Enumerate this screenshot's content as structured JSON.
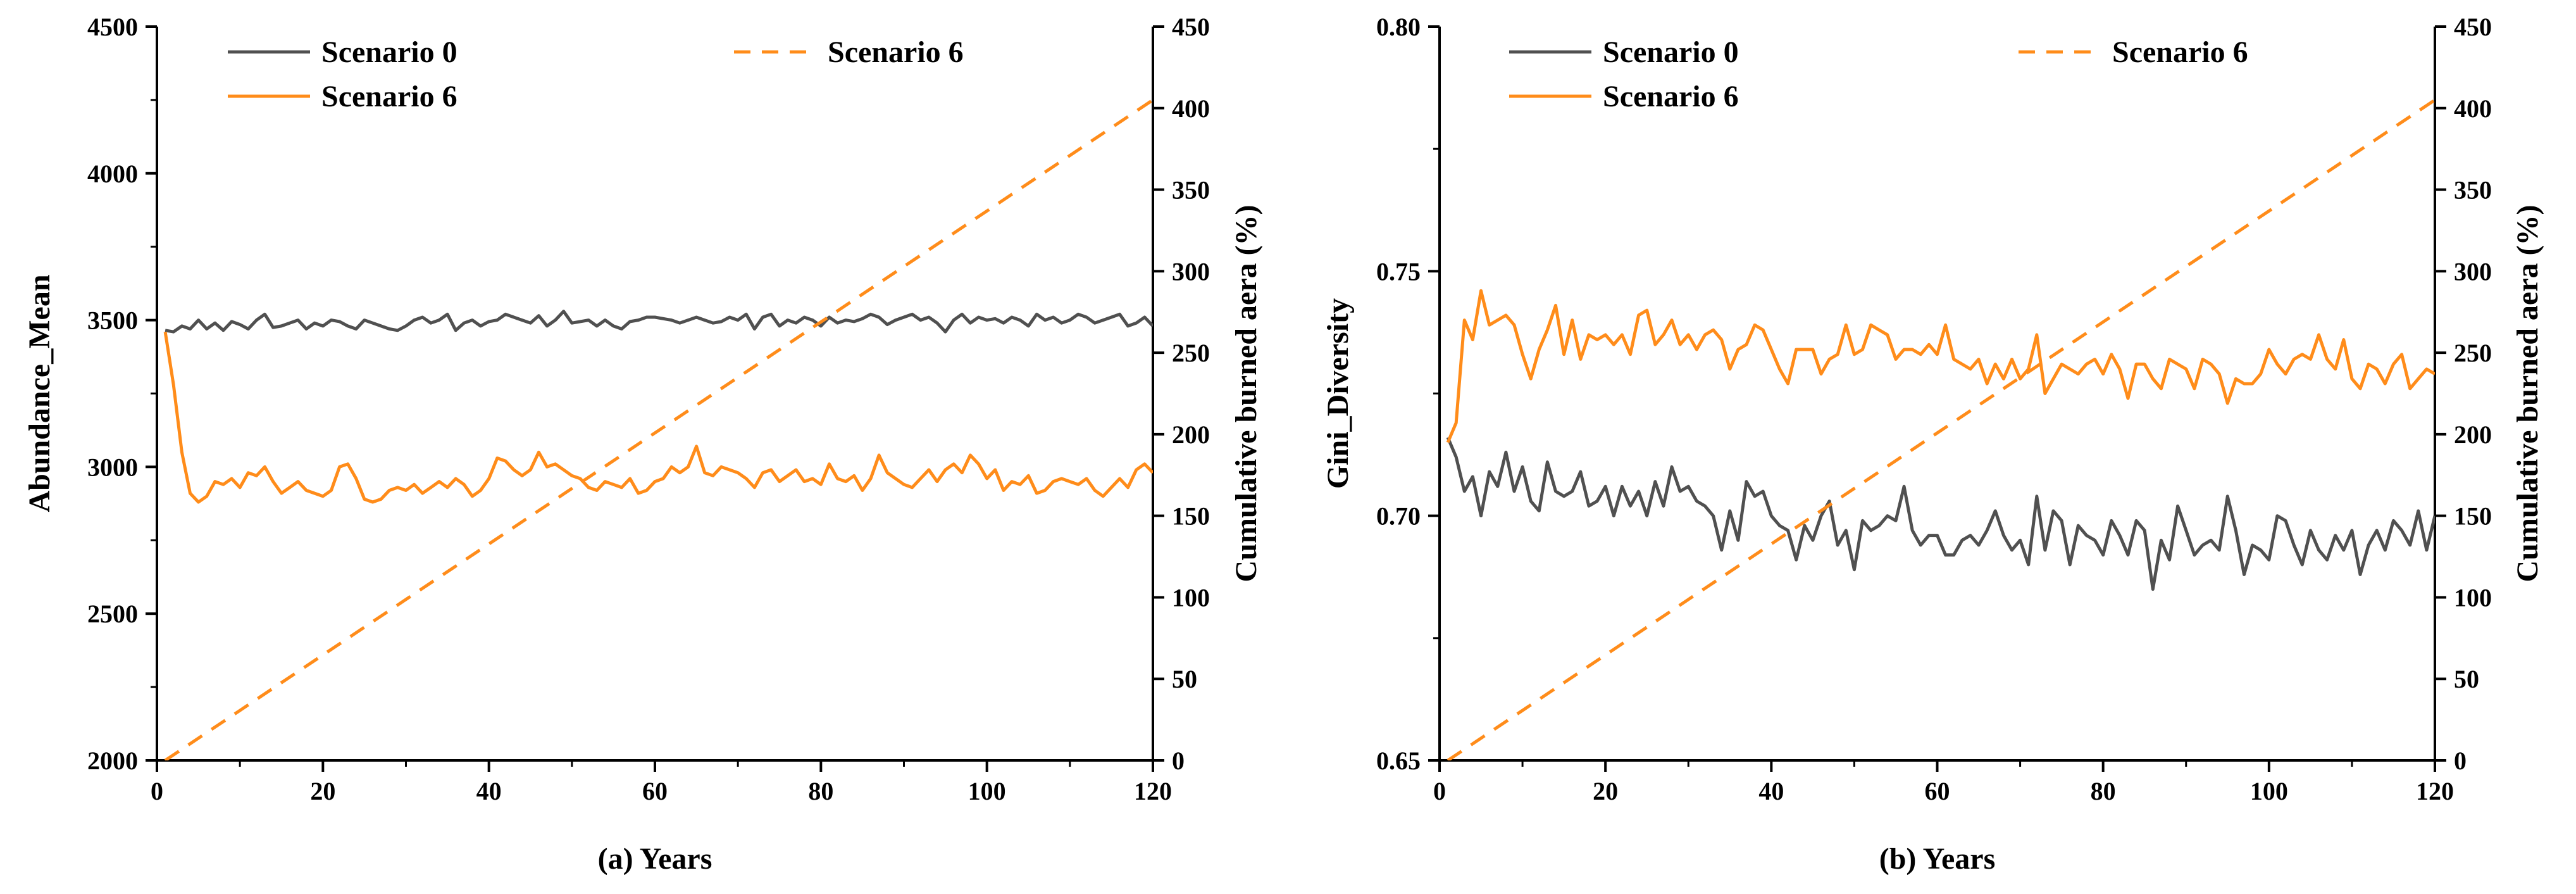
{
  "colors": {
    "scenario0": "#505050",
    "scenario6": "#ff8c1a",
    "axis": "#000000"
  },
  "chart_data": [
    {
      "type": "line",
      "panel_title": "(a) Years",
      "xlabel": "(a) Years",
      "ylabel": "Abundance_Mean",
      "y2label": "Cumulative burned aera (%)",
      "xlim": [
        0,
        120
      ],
      "ylim": [
        2000,
        4500
      ],
      "y2lim": [
        0,
        450
      ],
      "xticks": [
        "0",
        "20",
        "40",
        "60",
        "80",
        "100",
        "120"
      ],
      "yticks": [
        "2000",
        "2500",
        "3000",
        "3500",
        "4000",
        "4500"
      ],
      "y2ticks": [
        "0",
        "50",
        "100",
        "150",
        "200",
        "250",
        "300",
        "350",
        "400",
        "450"
      ],
      "legend": [
        "Scenario 0",
        "Scenario 6",
        "Scenario 6"
      ],
      "series": [
        {
          "name": "Scenario 0",
          "axis": "left",
          "style": "solid",
          "x_start": 1,
          "x_step": 1,
          "values": [
            3465,
            3460,
            3480,
            3470,
            3500,
            3470,
            3490,
            3465,
            3495,
            3485,
            3470,
            3500,
            3520,
            3475,
            3480,
            3490,
            3500,
            3470,
            3490,
            3480,
            3500,
            3495,
            3480,
            3470,
            3500,
            3490,
            3480,
            3470,
            3465,
            3480,
            3500,
            3510,
            3490,
            3500,
            3520,
            3465,
            3490,
            3500,
            3480,
            3495,
            3500,
            3520,
            3510,
            3500,
            3490,
            3515,
            3480,
            3500,
            3530,
            3490,
            3495,
            3500,
            3480,
            3500,
            3480,
            3470,
            3495,
            3500,
            3510,
            3510,
            3505,
            3500,
            3490,
            3500,
            3510,
            3500,
            3490,
            3495,
            3510,
            3500,
            3520,
            3470,
            3510,
            3520,
            3480,
            3500,
            3490,
            3510,
            3500,
            3480,
            3510,
            3490,
            3500,
            3495,
            3505,
            3520,
            3510,
            3485,
            3500,
            3510,
            3520,
            3500,
            3510,
            3490,
            3460,
            3500,
            3520,
            3490,
            3510,
            3500,
            3505,
            3490,
            3510,
            3500,
            3480,
            3520,
            3500,
            3510,
            3490,
            3500,
            3520,
            3510,
            3490,
            3500,
            3510,
            3520,
            3480,
            3490,
            3510,
            3480
          ]
        },
        {
          "name": "Scenario 6",
          "axis": "left",
          "style": "solid",
          "x_start": 1,
          "x_step": 1,
          "values": [
            3460,
            3280,
            3050,
            2910,
            2880,
            2900,
            2950,
            2940,
            2960,
            2930,
            2980,
            2970,
            3000,
            2950,
            2910,
            2930,
            2950,
            2920,
            2910,
            2900,
            2920,
            3000,
            3010,
            2960,
            2890,
            2880,
            2890,
            2920,
            2930,
            2920,
            2940,
            2910,
            2930,
            2950,
            2930,
            2960,
            2940,
            2900,
            2920,
            2960,
            3030,
            3020,
            2990,
            2970,
            2990,
            3050,
            3000,
            3010,
            2990,
            2970,
            2960,
            2930,
            2920,
            2950,
            2940,
            2930,
            2960,
            2910,
            2920,
            2950,
            2960,
            3000,
            2980,
            3000,
            3070,
            2980,
            2970,
            3000,
            2990,
            2980,
            2960,
            2930,
            2980,
            2990,
            2950,
            2970,
            2990,
            2950,
            2960,
            2940,
            3010,
            2960,
            2950,
            2970,
            2920,
            2960,
            3040,
            2980,
            2960,
            2940,
            2930,
            2960,
            2990,
            2950,
            2990,
            3010,
            2980,
            3040,
            3010,
            2960,
            2990,
            2920,
            2950,
            2940,
            2970,
            2910,
            2920,
            2950,
            2960,
            2950,
            2940,
            2960,
            2920,
            2900,
            2930,
            2960,
            2930,
            2990,
            3010,
            2980
          ]
        },
        {
          "name": "Scenario 6",
          "axis": "right",
          "style": "dashed",
          "x": [
            1,
            120
          ],
          "values": [
            0,
            405
          ]
        }
      ]
    },
    {
      "type": "line",
      "panel_title": "(b) Years",
      "xlabel": "(b) Years",
      "ylabel": "Gini_Diversity",
      "y2label": "Cumulative burned aera (%)",
      "xlim": [
        0,
        120
      ],
      "ylim": [
        0.65,
        0.8
      ],
      "y2lim": [
        0,
        450
      ],
      "xticks": [
        "0",
        "20",
        "40",
        "60",
        "80",
        "100",
        "120"
      ],
      "yticks": [
        "0.65",
        "0.70",
        "0.75",
        "0.80"
      ],
      "y2ticks": [
        "0",
        "50",
        "100",
        "150",
        "200",
        "250",
        "300",
        "350",
        "400",
        "450"
      ],
      "legend": [
        "Scenario 0",
        "Scenario 6",
        "Scenario 6"
      ],
      "series": [
        {
          "name": "Scenario 0",
          "axis": "left",
          "style": "solid",
          "x_start": 1,
          "x_step": 1,
          "values": [
            0.716,
            0.712,
            0.705,
            0.708,
            0.7,
            0.709,
            0.706,
            0.713,
            0.705,
            0.71,
            0.703,
            0.701,
            0.711,
            0.705,
            0.704,
            0.705,
            0.709,
            0.702,
            0.703,
            0.706,
            0.7,
            0.706,
            0.702,
            0.705,
            0.7,
            0.707,
            0.702,
            0.71,
            0.705,
            0.706,
            0.703,
            0.702,
            0.7,
            0.693,
            0.701,
            0.695,
            0.707,
            0.704,
            0.705,
            0.7,
            0.698,
            0.697,
            0.691,
            0.698,
            0.695,
            0.7,
            0.703,
            0.694,
            0.697,
            0.689,
            0.699,
            0.697,
            0.698,
            0.7,
            0.699,
            0.706,
            0.697,
            0.694,
            0.696,
            0.696,
            0.692,
            0.692,
            0.695,
            0.696,
            0.694,
            0.697,
            0.701,
            0.696,
            0.693,
            0.695,
            0.69,
            0.704,
            0.693,
            0.701,
            0.699,
            0.69,
            0.698,
            0.696,
            0.695,
            0.692,
            0.699,
            0.696,
            0.692,
            0.699,
            0.697,
            0.685,
            0.695,
            0.691,
            0.702,
            0.697,
            0.692,
            0.694,
            0.695,
            0.693,
            0.704,
            0.697,
            0.688,
            0.694,
            0.693,
            0.691,
            0.7,
            0.699,
            0.694,
            0.69,
            0.697,
            0.693,
            0.691,
            0.696,
            0.693,
            0.697,
            0.688,
            0.694,
            0.697,
            0.693,
            0.699,
            0.697,
            0.694,
            0.701,
            0.693,
            0.7
          ]
        },
        {
          "name": "Scenario 6",
          "axis": "left",
          "style": "solid",
          "x_start": 1,
          "x_step": 1,
          "values": [
            0.715,
            0.719,
            0.74,
            0.736,
            0.746,
            0.739,
            0.74,
            0.741,
            0.739,
            0.733,
            0.728,
            0.734,
            0.738,
            0.743,
            0.733,
            0.74,
            0.732,
            0.737,
            0.736,
            0.737,
            0.735,
            0.737,
            0.733,
            0.741,
            0.742,
            0.735,
            0.737,
            0.74,
            0.735,
            0.737,
            0.734,
            0.737,
            0.738,
            0.736,
            0.73,
            0.734,
            0.735,
            0.739,
            0.738,
            0.734,
            0.73,
            0.727,
            0.734,
            0.734,
            0.734,
            0.729,
            0.732,
            0.733,
            0.739,
            0.733,
            0.734,
            0.739,
            0.738,
            0.737,
            0.732,
            0.734,
            0.734,
            0.733,
            0.735,
            0.733,
            0.739,
            0.732,
            0.731,
            0.73,
            0.732,
            0.727,
            0.731,
            0.728,
            0.732,
            0.728,
            0.73,
            0.737,
            0.725,
            0.728,
            0.731,
            0.73,
            0.729,
            0.731,
            0.732,
            0.729,
            0.733,
            0.73,
            0.724,
            0.731,
            0.731,
            0.728,
            0.726,
            0.732,
            0.731,
            0.73,
            0.726,
            0.732,
            0.731,
            0.729,
            0.723,
            0.728,
            0.727,
            0.727,
            0.729,
            0.734,
            0.731,
            0.729,
            0.732,
            0.733,
            0.732,
            0.737,
            0.732,
            0.73,
            0.736,
            0.728,
            0.726,
            0.731,
            0.73,
            0.727,
            0.731,
            0.733,
            0.726,
            0.728,
            0.73,
            0.729
          ]
        },
        {
          "name": "Scenario 6",
          "axis": "right",
          "style": "dashed",
          "x": [
            1,
            120
          ],
          "values": [
            0,
            405
          ]
        }
      ]
    }
  ]
}
